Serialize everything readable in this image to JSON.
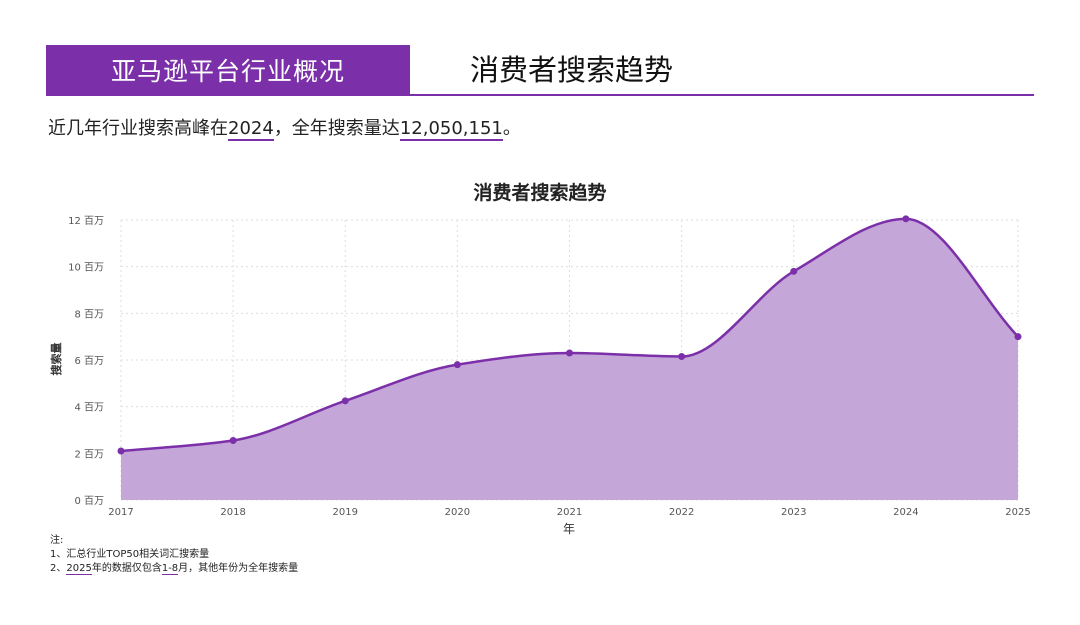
{
  "header": {
    "tag": "亚马逊平台行业概况",
    "title": "消费者搜索趋势"
  },
  "summary": {
    "part1": "近几年行业搜索高峰在",
    "peak_year": "2024",
    "part2": "，全年搜索量达",
    "peak_value": "12,050,151",
    "part3": "。"
  },
  "chart_data": {
    "type": "area",
    "title": "消费者搜索趋势",
    "xlabel": "年",
    "ylabel": "搜索量",
    "x": [
      "2017",
      "2018",
      "2019",
      "2020",
      "2021",
      "2022",
      "2023",
      "2024",
      "2025"
    ],
    "series": [
      {
        "values": [
          2.1,
          2.55,
          4.25,
          5.8,
          6.3,
          6.15,
          9.8,
          12.05,
          7.0
        ]
      }
    ],
    "y_ticks": [
      0,
      2,
      4,
      6,
      8,
      10,
      12
    ],
    "y_tick_labels": [
      "0 百万",
      "2 百万",
      "4 百万",
      "6 百万",
      "8 百万",
      "10 百万",
      "12 百万"
    ],
    "ylim": [
      0,
      12
    ],
    "grid": true,
    "colors": {
      "line": "#7b2fa8",
      "fill": "#c5a6d9",
      "grid": "#dddddd"
    }
  },
  "notes": {
    "heading": "注:",
    "line1": "1、汇总行业TOP50相关词汇搜索量",
    "line2_a": "2、",
    "line2_year": "2025",
    "line2_b": "年的数据仅包含",
    "line2_range": "1-8",
    "line2_c": "月，其他年份为全年搜索量"
  }
}
